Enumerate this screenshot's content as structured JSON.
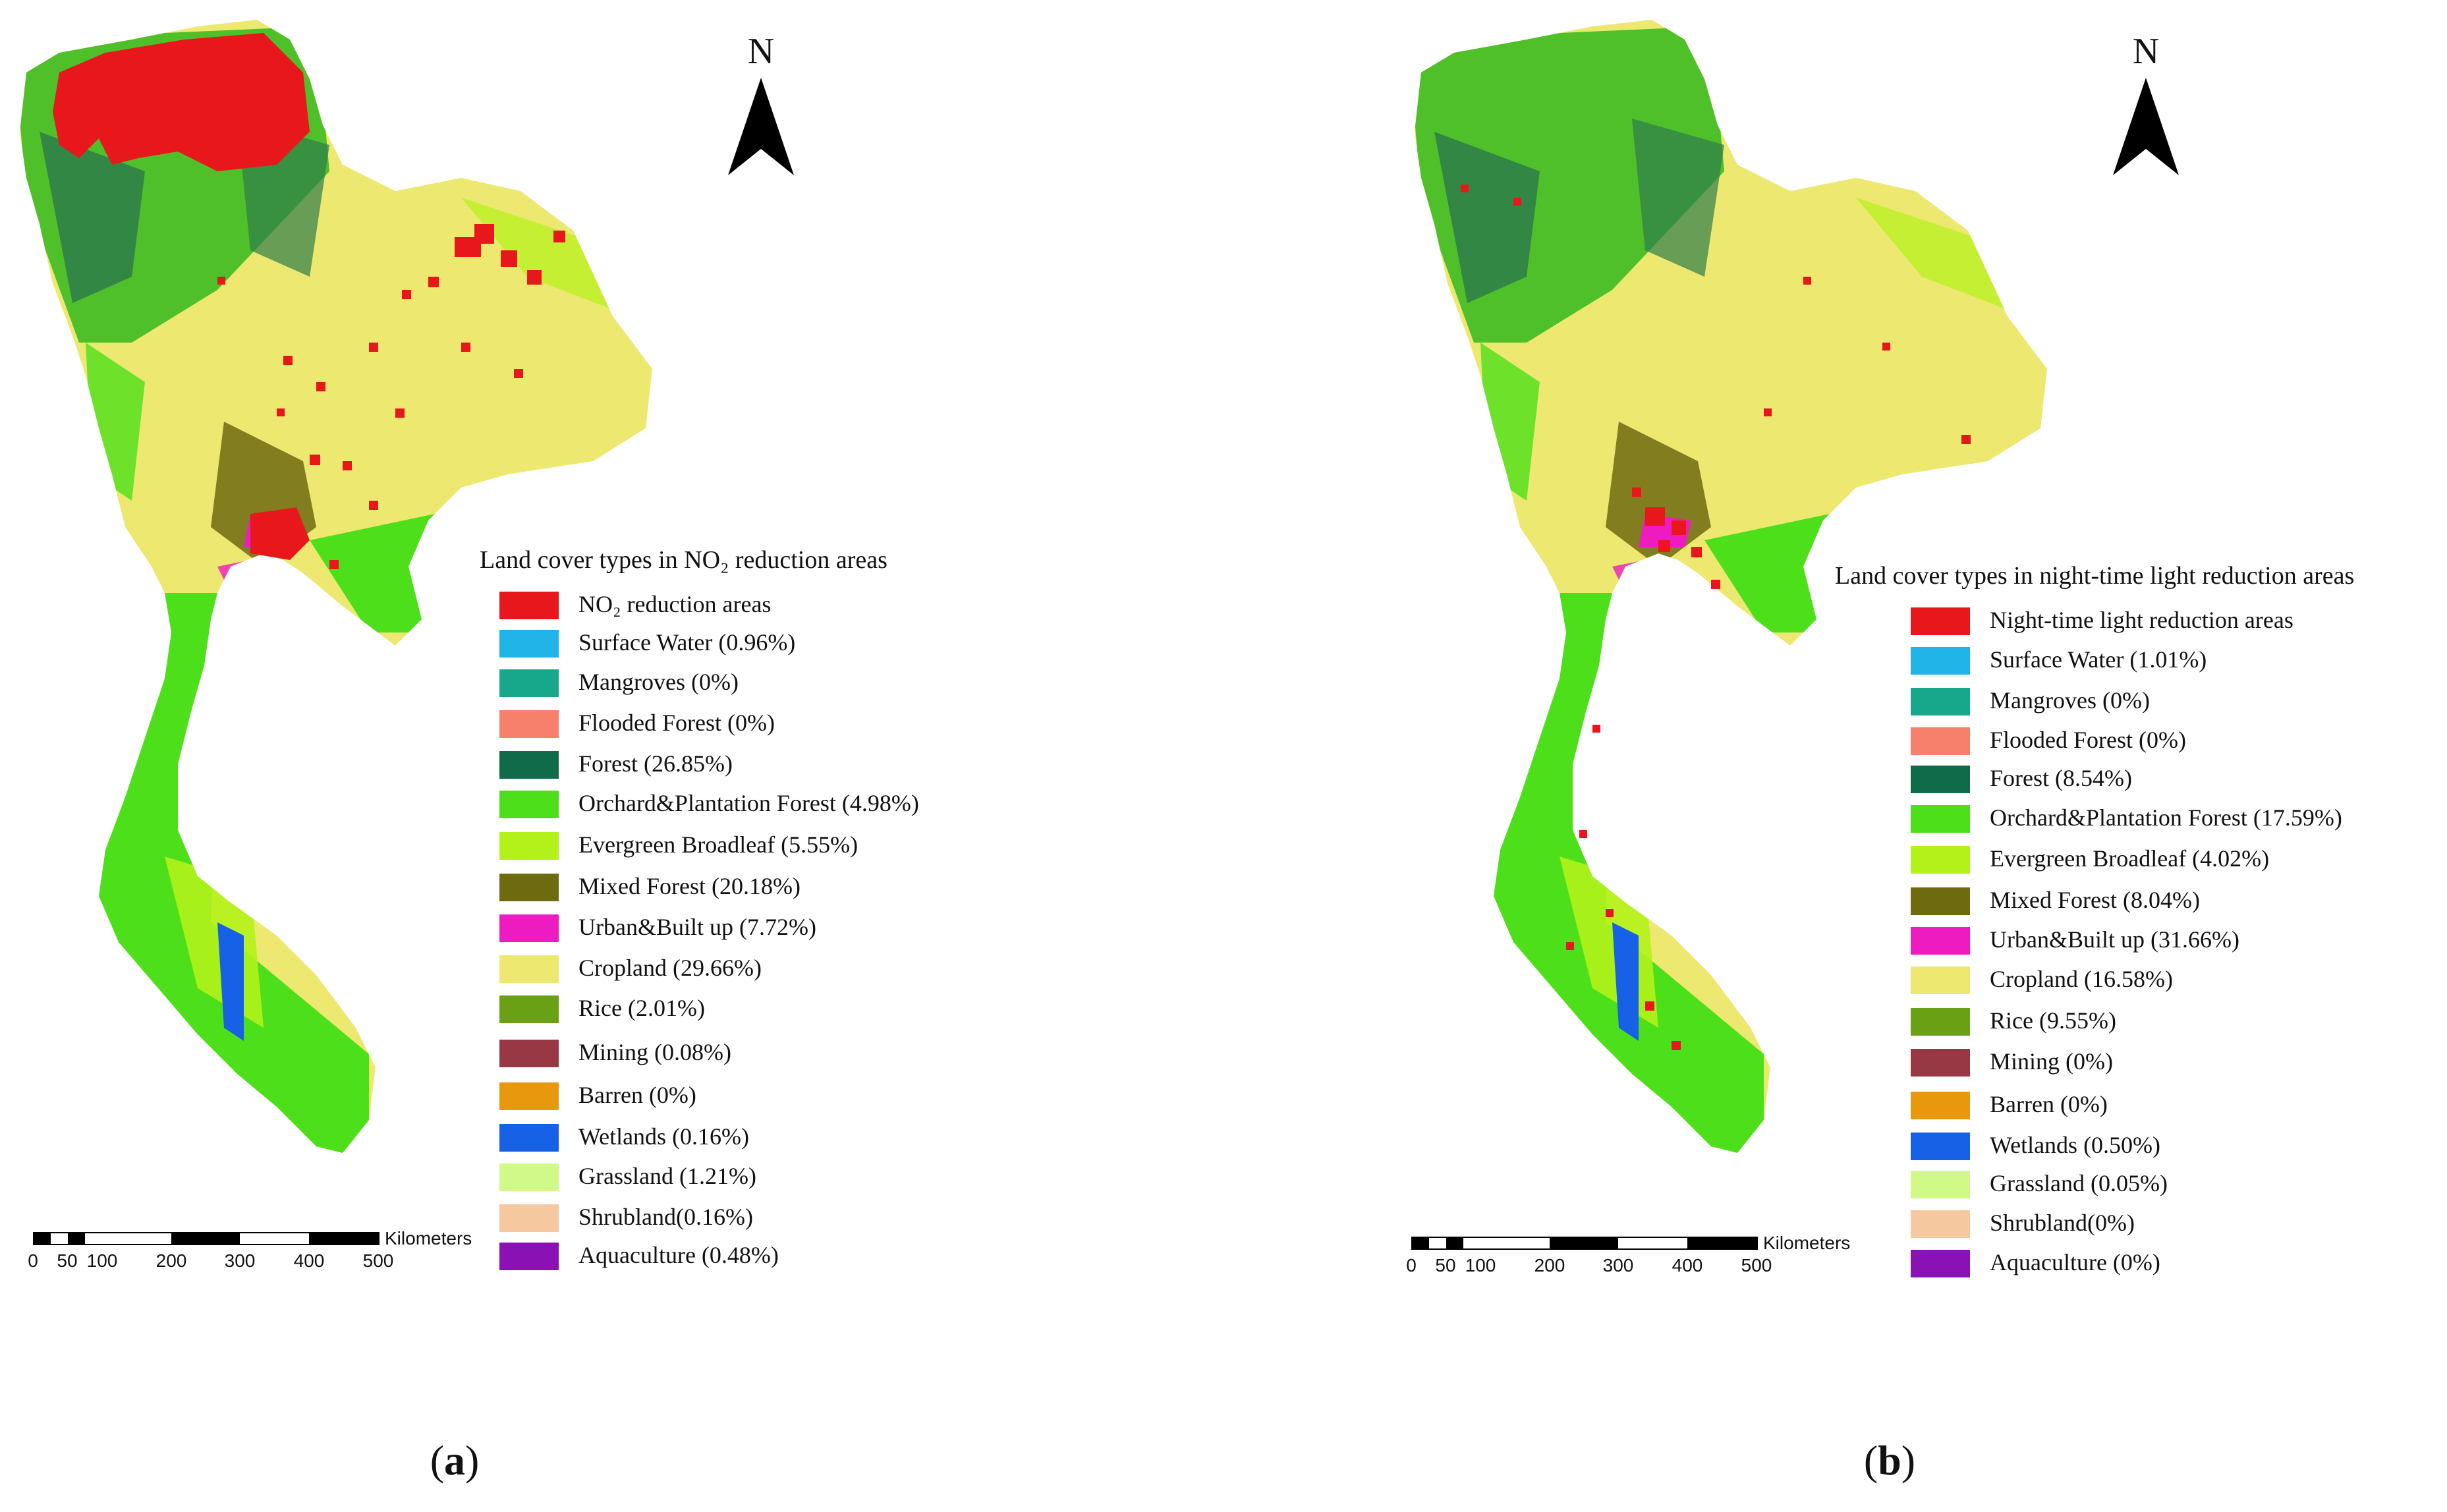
{
  "panels": [
    {
      "label_letter": "a",
      "north": "N",
      "legend_title": "Land cover types in NO₂ reduction areas",
      "legend_items": [
        {
          "label": "NO₂ reduction areas",
          "color": "#e8171b"
        },
        {
          "label": "Surface Water (0.96%)",
          "color": "#1fb3e8"
        },
        {
          "label": "Mangroves (0%)",
          "color": "#17a88c"
        },
        {
          "label": "Flooded Forest (0%)",
          "color": "#f6806c"
        },
        {
          "label": "Forest (26.85%)",
          "color": "#0f6b4a"
        },
        {
          "label": "Orchard&Plantation Forest (4.98%)",
          "color": "#4de01a"
        },
        {
          "label": "Evergreen Broadleaf (5.55%)",
          "color": "#b2f21a"
        },
        {
          "label": "Mixed Forest (20.18%)",
          "color": "#6e6a0f"
        },
        {
          "label": "Urban&Built up (7.72%)",
          "color": "#ee1cc0"
        },
        {
          "label": "Cropland (29.66%)",
          "color": "#ede870"
        },
        {
          "label": "Rice (2.01%)",
          "color": "#6aa014"
        },
        {
          "label": "Mining (0.08%)",
          "color": "#983844"
        },
        {
          "label": "Barren (0%)",
          "color": "#e8980c"
        },
        {
          "label": "Wetlands (0.16%)",
          "color": "#1661e6"
        },
        {
          "label": "Grassland (1.21%)",
          "color": "#d0f988"
        },
        {
          "label": "Shrubland(0.16%)",
          "color": "#f5c8a0"
        },
        {
          "label": "Aquaculture (0.48%)",
          "color": "#8a12b4"
        }
      ],
      "scale_unit": "Kilometers",
      "scale_ticks": [
        "0",
        "50",
        "100",
        "200",
        "300",
        "400",
        "500"
      ]
    },
    {
      "label_letter": "b",
      "north": "N",
      "legend_title": "Land cover types in night-time light reduction areas",
      "legend_items": [
        {
          "label": "Night-time light reduction areas",
          "color": "#e8171b"
        },
        {
          "label": "Surface Water (1.01%)",
          "color": "#1fb3e8"
        },
        {
          "label": "Mangroves (0%)",
          "color": "#17a88c"
        },
        {
          "label": "Flooded Forest (0%)",
          "color": "#f6806c"
        },
        {
          "label": "Forest (8.54%)",
          "color": "#0f6b4a"
        },
        {
          "label": "Orchard&Plantation Forest (17.59%)",
          "color": "#4de01a"
        },
        {
          "label": "Evergreen Broadleaf (4.02%)",
          "color": "#b2f21a"
        },
        {
          "label": "Mixed Forest (8.04%)",
          "color": "#6e6a0f"
        },
        {
          "label": "Urban&Built up (31.66%)",
          "color": "#ee1cc0"
        },
        {
          "label": "Cropland (16.58%)",
          "color": "#ede870"
        },
        {
          "label": "Rice (9.55%)",
          "color": "#6aa014"
        },
        {
          "label": "Mining (0%)",
          "color": "#983844"
        },
        {
          "label": "Barren (0%)",
          "color": "#e8980c"
        },
        {
          "label": "Wetlands (0.50%)",
          "color": "#1661e6"
        },
        {
          "label": "Grassland (0.05%)",
          "color": "#d0f988"
        },
        {
          "label": "Shrubland(0%)",
          "color": "#f5c8a0"
        },
        {
          "label": "Aquaculture (0%)",
          "color": "#8a12b4"
        }
      ],
      "scale_unit": "Kilometers",
      "scale_ticks": [
        "0",
        "50",
        "100",
        "200",
        "300",
        "400",
        "500"
      ]
    }
  ]
}
